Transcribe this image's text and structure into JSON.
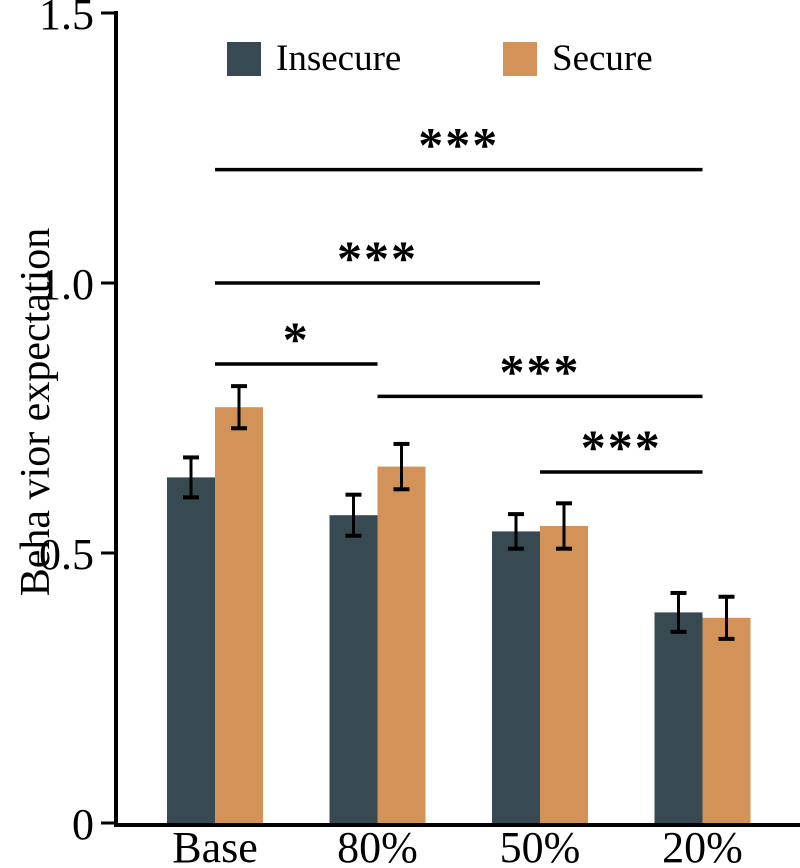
{
  "figure": {
    "background": "#ffffff"
  },
  "chart_data": {
    "type": "bar",
    "title": "",
    "categories": [
      "Base",
      "80%",
      "50%",
      "20%"
    ],
    "series": [
      {
        "name": "Insecure",
        "color": "#374951",
        "values": [
          0.64,
          0.57,
          0.54,
          0.39
        ],
        "errors": [
          0.037,
          0.038,
          0.032,
          0.036
        ]
      },
      {
        "name": "Secure",
        "color": "#d29258",
        "values": [
          0.77,
          0.66,
          0.55,
          0.38
        ],
        "errors": [
          0.039,
          0.042,
          0.042,
          0.039
        ]
      }
    ],
    "xlabel": "",
    "ylabel": "Beha vior expectation",
    "ylim": [
      0,
      1.5
    ],
    "yticks": [
      0,
      0.5,
      1.0,
      1.5
    ],
    "ytick_labels": [
      "0",
      "0.5",
      "1.0",
      "1.5"
    ],
    "grid": false,
    "legend_position": "top",
    "axis_color": "#000000",
    "error_bar_color": "#000000",
    "significance": [
      {
        "from": "Base",
        "to": "20%",
        "label": "***",
        "y": 1.21
      },
      {
        "from": "Base",
        "to": "50%",
        "label": "***",
        "y": 1.0
      },
      {
        "from": "Base",
        "to": "80%",
        "label": "*",
        "y": 0.85
      },
      {
        "from": "80%",
        "to": "20%",
        "label": "***",
        "y": 0.79
      },
      {
        "from": "50%",
        "to": "20%",
        "label": "***",
        "y": 0.65
      }
    ]
  }
}
